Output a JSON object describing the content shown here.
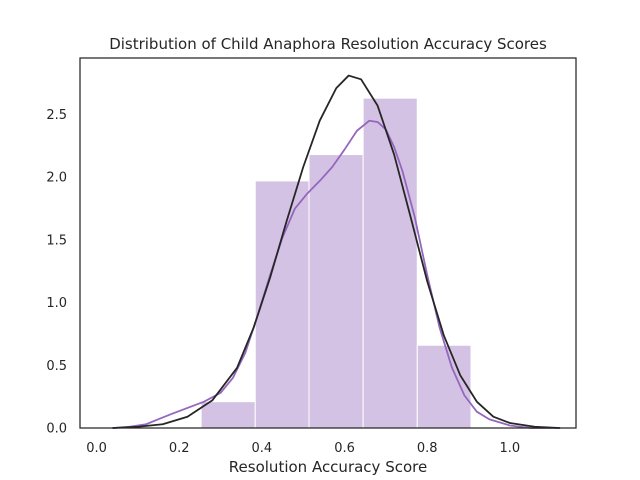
{
  "chart_data": {
    "type": "bar",
    "title": "Distribution of Child Anaphora Resolution Accuracy Scores",
    "xlabel": "Resolution Accuracy Score",
    "ylabel": "",
    "xlim": [
      -0.04,
      1.16
    ],
    "ylim": [
      0,
      2.95
    ],
    "xticks": [
      0.0,
      0.2,
      0.4,
      0.6,
      0.8,
      1.0
    ],
    "yticks": [
      0.0,
      0.5,
      1.0,
      1.5,
      2.0,
      2.5
    ],
    "xtick_labels": [
      "0.0",
      "0.2",
      "0.4",
      "0.6",
      "0.8",
      "1.0"
    ],
    "ytick_labels": [
      "0.0",
      "0.5",
      "1.0",
      "1.5",
      "2.0",
      "2.5"
    ],
    "grid": false,
    "series": [
      {
        "type": "histogram",
        "color": "#9467bd",
        "bins": [
          {
            "x0": 0.253,
            "x1": 0.384,
            "value": 0.21
          },
          {
            "x0": 0.384,
            "x1": 0.514,
            "value": 1.97
          },
          {
            "x0": 0.514,
            "x1": 0.645,
            "value": 2.18
          },
          {
            "x0": 0.645,
            "x1": 0.776,
            "value": 2.63
          },
          {
            "x0": 0.776,
            "x1": 0.906,
            "value": 0.66
          }
        ]
      },
      {
        "type": "line",
        "color": "#9467bd",
        "points": [
          [
            0.04,
            0.0
          ],
          [
            0.08,
            0.01
          ],
          [
            0.12,
            0.03
          ],
          [
            0.15,
            0.07
          ],
          [
            0.18,
            0.11
          ],
          [
            0.22,
            0.16
          ],
          [
            0.26,
            0.21
          ],
          [
            0.3,
            0.28
          ],
          [
            0.33,
            0.4
          ],
          [
            0.36,
            0.6
          ],
          [
            0.39,
            0.9
          ],
          [
            0.42,
            1.22
          ],
          [
            0.45,
            1.52
          ],
          [
            0.48,
            1.75
          ],
          [
            0.51,
            1.87
          ],
          [
            0.54,
            1.97
          ],
          [
            0.57,
            2.08
          ],
          [
            0.6,
            2.22
          ],
          [
            0.63,
            2.37
          ],
          [
            0.66,
            2.45
          ],
          [
            0.68,
            2.44
          ],
          [
            0.7,
            2.38
          ],
          [
            0.72,
            2.24
          ],
          [
            0.74,
            2.05
          ],
          [
            0.77,
            1.68
          ],
          [
            0.8,
            1.22
          ],
          [
            0.83,
            0.8
          ],
          [
            0.86,
            0.48
          ],
          [
            0.89,
            0.26
          ],
          [
            0.92,
            0.13
          ],
          [
            0.95,
            0.07
          ],
          [
            1.0,
            0.02
          ],
          [
            1.05,
            0.0
          ],
          [
            1.12,
            0.0
          ]
        ]
      },
      {
        "type": "line",
        "color": "#262626",
        "points": [
          [
            0.04,
            0.0
          ],
          [
            0.1,
            0.01
          ],
          [
            0.16,
            0.03
          ],
          [
            0.22,
            0.09
          ],
          [
            0.28,
            0.22
          ],
          [
            0.34,
            0.48
          ],
          [
            0.38,
            0.8
          ],
          [
            0.42,
            1.2
          ],
          [
            0.46,
            1.65
          ],
          [
            0.5,
            2.08
          ],
          [
            0.54,
            2.45
          ],
          [
            0.58,
            2.71
          ],
          [
            0.61,
            2.81
          ],
          [
            0.64,
            2.78
          ],
          [
            0.68,
            2.57
          ],
          [
            0.72,
            2.18
          ],
          [
            0.76,
            1.68
          ],
          [
            0.8,
            1.17
          ],
          [
            0.84,
            0.74
          ],
          [
            0.88,
            0.42
          ],
          [
            0.92,
            0.21
          ],
          [
            0.96,
            0.09
          ],
          [
            1.0,
            0.04
          ],
          [
            1.06,
            0.01
          ],
          [
            1.12,
            0.0
          ]
        ]
      }
    ]
  }
}
